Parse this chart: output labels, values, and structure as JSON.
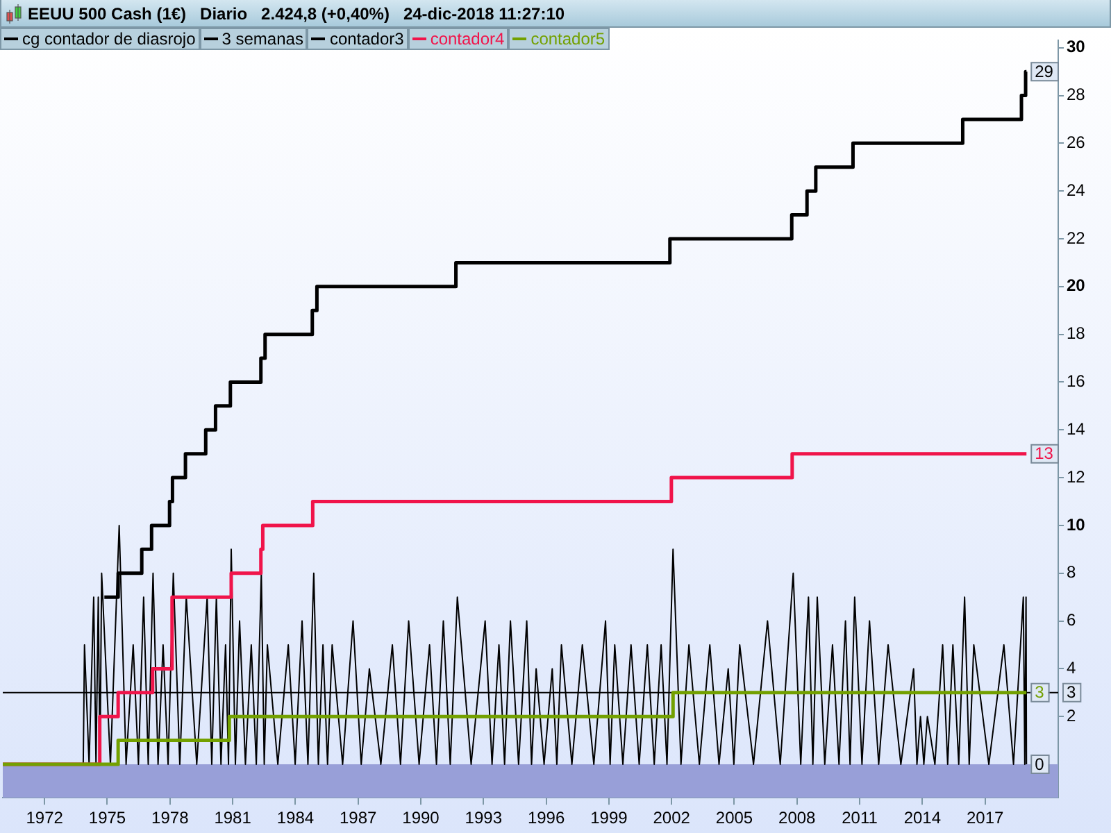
{
  "chart_data": {
    "type": "line",
    "title": "EEUU 500 Cash (1€)   Diario   2.424,8 (+0,40%)   24-dic-2018 11:27:10",
    "xlim": [
      1970,
      2020.5
    ],
    "xticks": [
      1972,
      1975,
      1978,
      1981,
      1984,
      1987,
      1990,
      1993,
      1996,
      1999,
      2002,
      2005,
      2008,
      2011,
      2014,
      2017
    ],
    "ylim": [
      -1.4,
      30.3
    ],
    "yticks": [
      2,
      4,
      6,
      8,
      10,
      12,
      14,
      16,
      18,
      20,
      22,
      24,
      26,
      28,
      30
    ],
    "legend": "top left",
    "bands": [
      {
        "axis": "y",
        "from": -1.4,
        "to": 0,
        "color": "#989fd8"
      }
    ],
    "series": [
      {
        "name": "cg contador de diasrojo",
        "color": "#000000",
        "x": [
          1973.85,
          1973.91,
          1974.13,
          1974.35,
          1974.46,
          1974.57,
          1974.65,
          1974.73,
          1975.15,
          1975.57,
          1975.9,
          1976.24,
          1976.49,
          1976.74,
          1976.96,
          1977.19,
          1977.43,
          1977.67,
          1977.91,
          1978.16,
          1978.47,
          1978.78,
          1979.28,
          1979.78,
          1980.0,
          1980.22,
          1980.44,
          1980.66,
          1980.8,
          1980.93,
          1981.13,
          1981.33,
          1981.61,
          1981.89,
          1982.13,
          1982.37,
          1982.51,
          1982.66,
          1983.16,
          1983.66,
          1983.99,
          1984.32,
          1984.6,
          1984.88,
          1985.1,
          1985.32,
          1985.54,
          1985.76,
          1986.26,
          1986.76,
          1987.15,
          1987.54,
          1988.09,
          1988.64,
          1989.03,
          1989.42,
          1989.92,
          1990.42,
          1990.75,
          1991.08,
          1991.41,
          1991.75,
          1992.41,
          1993.08,
          1993.41,
          1993.74,
          1994.01,
          1994.29,
          1994.68,
          1995.07,
          1995.3,
          1995.52,
          1995.9,
          1996.29,
          1996.51,
          1996.73,
          1997.23,
          1997.73,
          1998.28,
          1998.84,
          1999.06,
          1999.28,
          1999.67,
          2000.06,
          2000.45,
          2000.84,
          2001.17,
          2001.5,
          2001.78,
          2002.07,
          2002.45,
          2002.83,
          2003.33,
          2003.83,
          2004.27,
          2004.71,
          2004.98,
          2005.26,
          2005.92,
          2006.59,
          2007.2,
          2007.82,
          2008.18,
          2008.55,
          2008.76,
          2008.97,
          2009.33,
          2009.7,
          2010.01,
          2010.32,
          2010.54,
          2010.76,
          2011.11,
          2011.47,
          2011.91,
          2012.36,
          2012.97,
          2013.58,
          2013.74,
          2013.91,
          2014.07,
          2014.24,
          2014.6,
          2014.97,
          2015.21,
          2015.46,
          2015.74,
          2016.02,
          2016.24,
          2016.46,
          2017.18,
          2017.9,
          2018.36,
          2018.83,
          2018.9,
          2018.96,
          2018.98
        ],
        "values": [
          0,
          5,
          0,
          7,
          0,
          7,
          0,
          8,
          0,
          10,
          0,
          5,
          0,
          7,
          0,
          8,
          0,
          5,
          0,
          8,
          0,
          7,
          0,
          7,
          0,
          7,
          0,
          5,
          0,
          9,
          0,
          6,
          0,
          5,
          0,
          8,
          0,
          5,
          0,
          5,
          0,
          6,
          0,
          8,
          0,
          5,
          0,
          5,
          0,
          6,
          0,
          4,
          0,
          5,
          0,
          6,
          0,
          5,
          0,
          6,
          0,
          7,
          0,
          6,
          0,
          5,
          0,
          6,
          0,
          6,
          0,
          4,
          0,
          4,
          0,
          5,
          0,
          5,
          0,
          6,
          0,
          5,
          0,
          5,
          0,
          5,
          0,
          5,
          0,
          9,
          0,
          5,
          0,
          5,
          0,
          4,
          0,
          5,
          0,
          6,
          0,
          8,
          0,
          7,
          0,
          7,
          0,
          5,
          0,
          6,
          0,
          7,
          0,
          6,
          0,
          5,
          0,
          4,
          0,
          2,
          0,
          2,
          0,
          5,
          0,
          5,
          0,
          7,
          0,
          5,
          0,
          5,
          0,
          7,
          0,
          7,
          0
        ],
        "value_labels": [
          null,
          null,
          null,
          null,
          null,
          null,
          null,
          null,
          null,
          null,
          null,
          null,
          null,
          null,
          null,
          null,
          null,
          null,
          null,
          null,
          null,
          null,
          null,
          null,
          null,
          null,
          null,
          null,
          null,
          null,
          null,
          null,
          null,
          null,
          null,
          null,
          null,
          null,
          null,
          null,
          null,
          null,
          null,
          null,
          null,
          null,
          null,
          null,
          null,
          null,
          null,
          null,
          null,
          null,
          null,
          null,
          null,
          null,
          null,
          null,
          null,
          null,
          null,
          null,
          null,
          null,
          null,
          null,
          null,
          null,
          null,
          null,
          null,
          null,
          null,
          null,
          null,
          null,
          null,
          null,
          null,
          null,
          null,
          null,
          null,
          null,
          null,
          null,
          null,
          null,
          null,
          null,
          null,
          null,
          null,
          null,
          null,
          null,
          null,
          null,
          null,
          null,
          null,
          null,
          null,
          null,
          null,
          null,
          null,
          null,
          null,
          null,
          null,
          null,
          null,
          null,
          null,
          null,
          null,
          null,
          null,
          null,
          null,
          null,
          null,
          null,
          null,
          null,
          null,
          null,
          null,
          null,
          null,
          null,
          null,
          null,
          "0"
        ]
      },
      {
        "name": "3 semanas",
        "type": "line",
        "color": "#000000",
        "x": [
          1970,
          2020.5
        ],
        "values": [
          3,
          3
        ],
        "value_labels": [
          null,
          "3"
        ]
      },
      {
        "name": "contador3",
        "type": "step",
        "color": "#000000",
        "x": [
          1974.86,
          1975.52,
          1976.65,
          1977.12,
          1977.98,
          1978.12,
          1978.74,
          1979.71,
          1980.18,
          1980.89,
          1982.35,
          1982.55,
          1984.81,
          1985.03,
          1991.68,
          2001.92,
          2007.75,
          2008.48,
          2008.9,
          2010.68,
          2015.93,
          2018.74,
          2018.94,
          2018.98
        ],
        "values": [
          7,
          8,
          9,
          10,
          11,
          12,
          13,
          14,
          15,
          16,
          17,
          18,
          19,
          20,
          21,
          22,
          23,
          24,
          25,
          26,
          27,
          28,
          29,
          29
        ],
        "value_labels": [
          null,
          null,
          null,
          null,
          null,
          null,
          null,
          null,
          null,
          null,
          null,
          null,
          null,
          null,
          null,
          null,
          null,
          null,
          null,
          null,
          null,
          null,
          null,
          "29"
        ]
      },
      {
        "name": "contador4",
        "type": "step",
        "color": "#f0144a",
        "x": [
          1970,
          1974.64,
          1975.52,
          1977.17,
          1978.1,
          1980.93,
          1982.35,
          1982.44,
          1984.83,
          2001.99,
          2007.77,
          2018.98
        ],
        "values": [
          0,
          2,
          3,
          4,
          7,
          8,
          9,
          10,
          11,
          12,
          13,
          13
        ],
        "value_labels": [
          null,
          null,
          null,
          null,
          null,
          null,
          null,
          null,
          null,
          null,
          null,
          "13"
        ]
      },
      {
        "name": "contador5",
        "type": "step",
        "color": "#73a000",
        "x": [
          1970,
          1975.52,
          1980.84,
          2002.07,
          2018.98
        ],
        "values": [
          0,
          1,
          2,
          3,
          3
        ],
        "value_labels": [
          null,
          null,
          null,
          null,
          "3"
        ]
      }
    ]
  }
}
